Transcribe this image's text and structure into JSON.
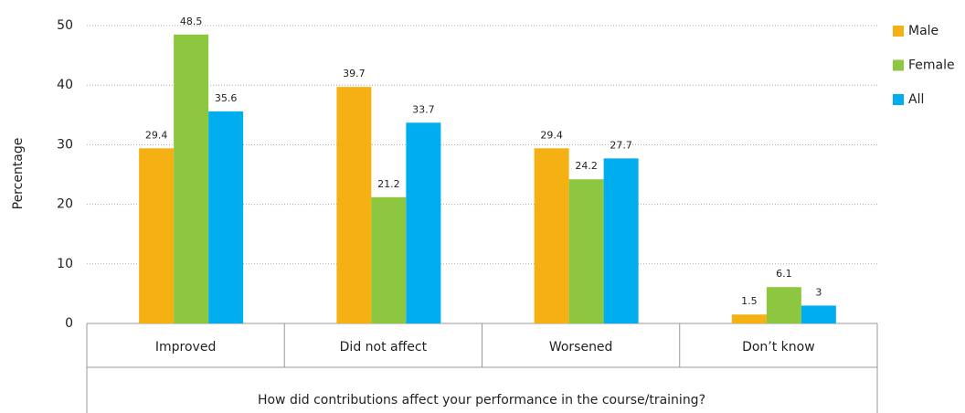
{
  "chart_data": {
    "type": "bar",
    "x_label": "How did contributions affect your performance in the course/training?",
    "y_label": "Percentage",
    "categories": [
      "Improved",
      "Did not affect",
      "Worsened",
      "Don’t know"
    ],
    "series": [
      {
        "name": "Male",
        "color": "#f5b014",
        "values": [
          29.4,
          39.7,
          29.4,
          1.5
        ]
      },
      {
        "name": "Female",
        "color": "#8dc63f",
        "values": [
          48.5,
          21.2,
          24.2,
          6.1
        ]
      },
      {
        "name": "All",
        "color": "#00aeef",
        "values": [
          35.6,
          33.7,
          27.7,
          3
        ]
      }
    ],
    "ylim": [
      0,
      50
    ],
    "yticks": [
      0,
      10,
      20,
      30,
      40,
      50
    ],
    "grid": true,
    "legend": "right"
  }
}
